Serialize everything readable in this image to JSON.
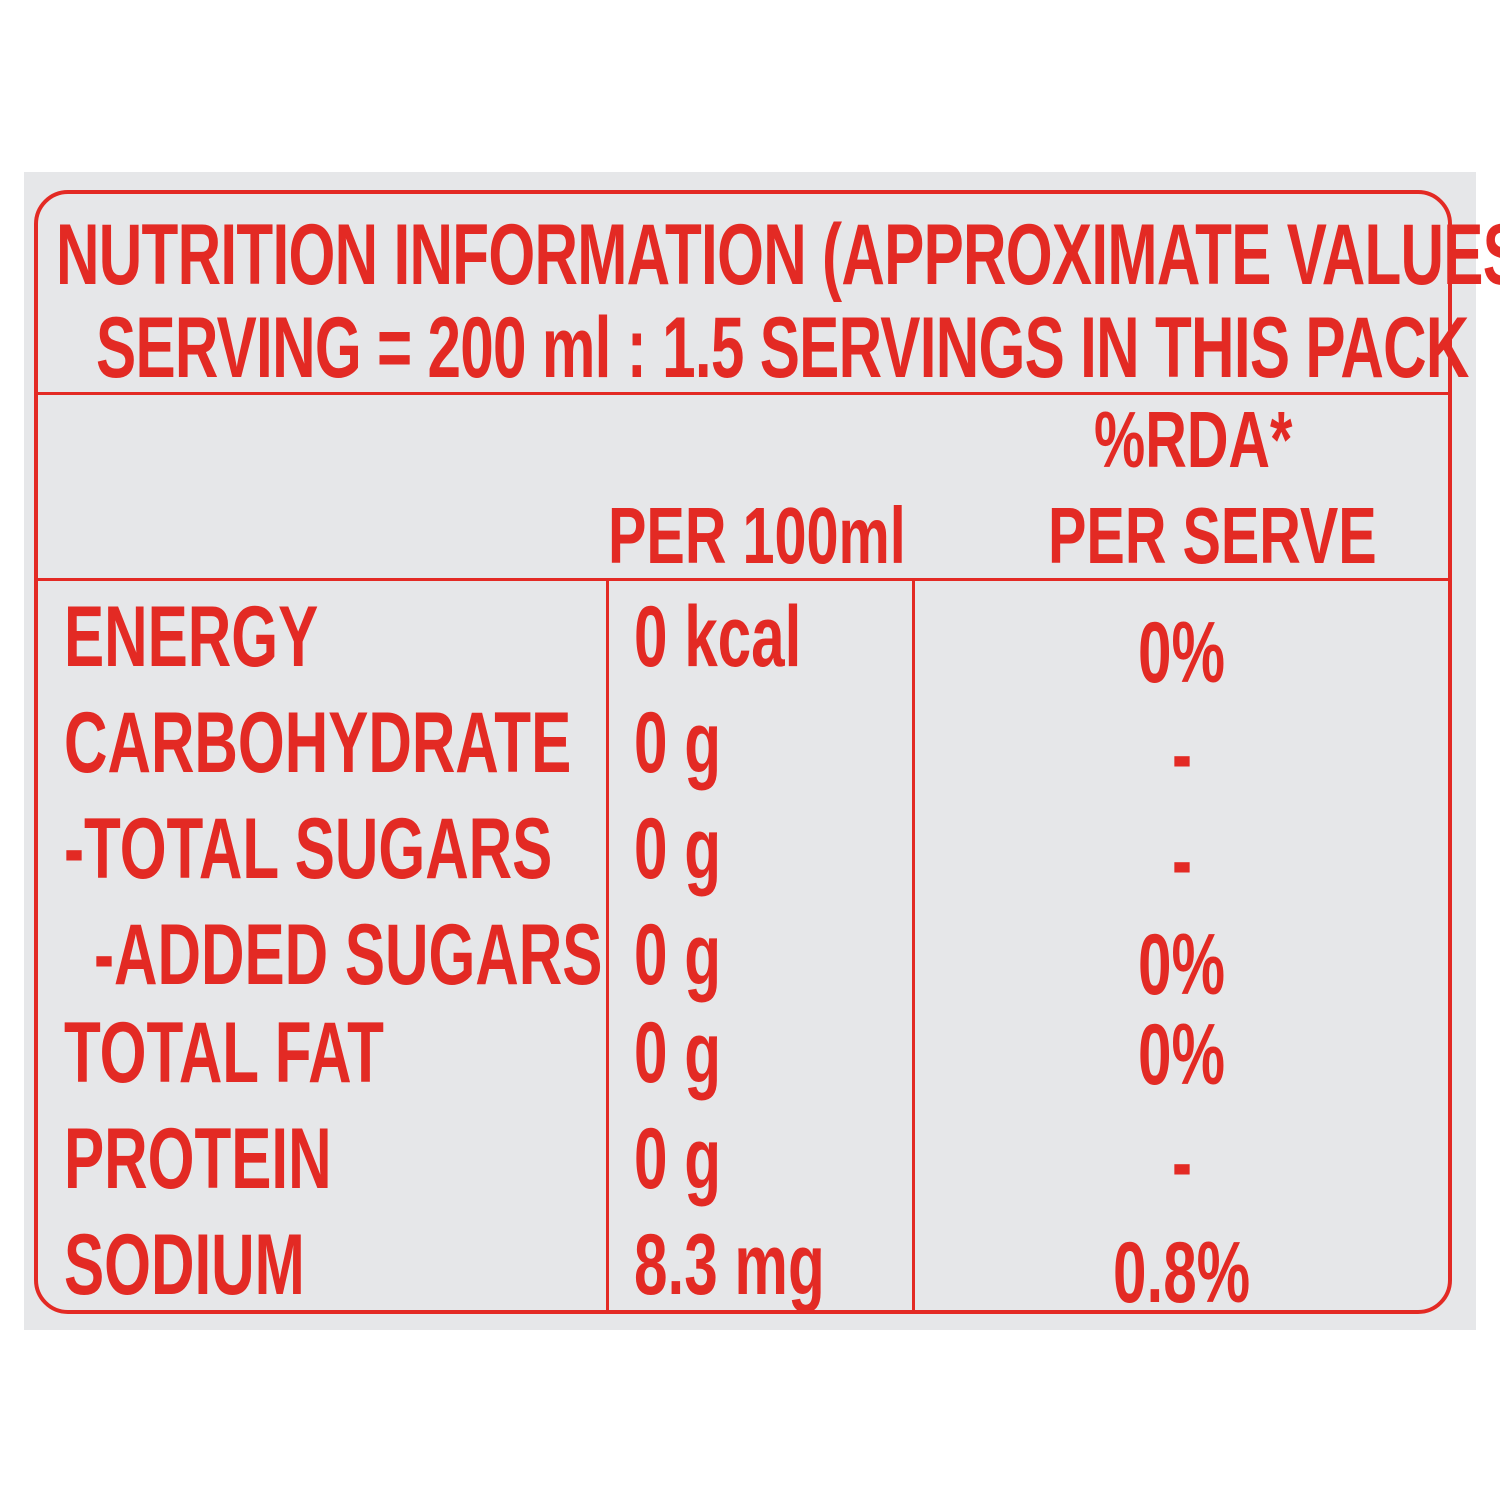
{
  "label": {
    "title": "NUTRITION INFORMATION (APPROXIMATE VALUES)",
    "serving": "SERVING = 200 ml : 1.5 SERVINGS IN THIS PACK",
    "columns": {
      "per_100ml": "PER 100ml",
      "rda_line1": "%RDA*",
      "rda_line2": "PER SERVE"
    },
    "rows": [
      {
        "nutrient": "ENERGY",
        "per_100ml": "0 kcal",
        "rda": "0%"
      },
      {
        "nutrient": "CARBOHYDRATE",
        "per_100ml": "0 g",
        "rda": "-"
      },
      {
        "nutrient": "-TOTAL SUGARS",
        "per_100ml": "0 g",
        "rda": "-"
      },
      {
        "nutrient": "-ADDED SUGARS",
        "per_100ml": "0 g",
        "rda": "0%"
      },
      {
        "nutrient": "TOTAL FAT",
        "per_100ml": "0 g",
        "rda": "0%"
      },
      {
        "nutrient": "PROTEIN",
        "per_100ml": "0 g",
        "rda": "-"
      },
      {
        "nutrient": "SODIUM",
        "per_100ml": "8.3 mg",
        "rda": "0.8%"
      }
    ]
  },
  "colors": {
    "ink": "#e32a24",
    "panel": "#e6e7e9",
    "background": "#ffffff"
  }
}
